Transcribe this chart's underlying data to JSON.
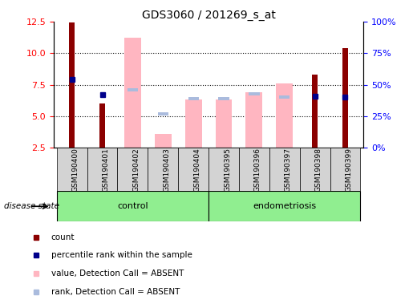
{
  "title": "GDS3060 / 201269_s_at",
  "samples": [
    "GSM190400",
    "GSM190401",
    "GSM190402",
    "GSM190403",
    "GSM190404",
    "GSM190395",
    "GSM190396",
    "GSM190397",
    "GSM190398",
    "GSM190399"
  ],
  "count_values": [
    12.4,
    6.0,
    null,
    null,
    null,
    null,
    null,
    null,
    8.3,
    10.4
  ],
  "percentile_values": [
    7.9,
    6.7,
    null,
    null,
    null,
    null,
    null,
    null,
    6.6,
    6.5
  ],
  "absent_value_bars": [
    null,
    null,
    11.2,
    3.6,
    6.3,
    6.3,
    6.9,
    7.6,
    null,
    null
  ],
  "absent_rank_bars": [
    null,
    null,
    7.1,
    5.2,
    6.4,
    6.4,
    6.8,
    6.5,
    null,
    null
  ],
  "ylim_left": [
    2.5,
    12.5
  ],
  "ylim_right": [
    0,
    100
  ],
  "yticks_left": [
    2.5,
    5.0,
    7.5,
    10.0,
    12.5
  ],
  "yticks_right": [
    0,
    25,
    50,
    75,
    100
  ],
  "count_color": "#8B0000",
  "percentile_color": "#00008B",
  "absent_value_color": "#FFB6C1",
  "absent_rank_color": "#AABBDD",
  "bg_color_plot": "#FFFFFF",
  "bg_color_fig": "#FFFFFF",
  "control_color": "#90EE90",
  "endometriosis_color": "#90EE90",
  "xtick_box_color": "#D3D3D3"
}
